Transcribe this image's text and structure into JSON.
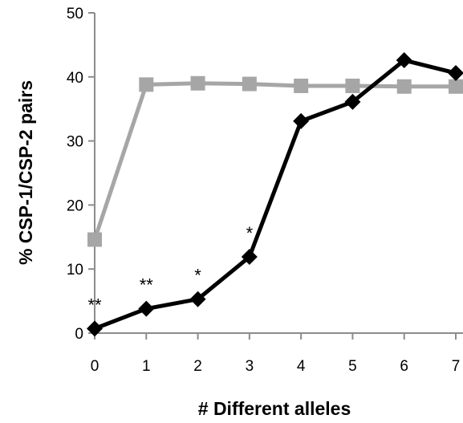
{
  "chart_data": {
    "type": "line",
    "title": "",
    "xlabel": "# Different alleles",
    "ylabel": "% CSP-1/CSP-2 pairs",
    "x": [
      0,
      1,
      2,
      3,
      4,
      5,
      6,
      7
    ],
    "xlim": [
      0,
      7
    ],
    "ylim": [
      0,
      50
    ],
    "yticks": [
      "0",
      "10",
      "20",
      "30",
      "40",
      "50"
    ],
    "xticks": [
      "0",
      "1",
      "2",
      "3",
      "4",
      "5",
      "6",
      "7"
    ],
    "grid": false,
    "legend": "none",
    "series": [
      {
        "color": "#a6a6a6",
        "marker": "square",
        "values": [
          14.6,
          38.8,
          39.0,
          38.9,
          38.6,
          38.6,
          38.5,
          38.5
        ]
      },
      {
        "color": "#000000",
        "marker": "diamond",
        "values": [
          0.7,
          3.8,
          5.3,
          11.9,
          33.1,
          36.1,
          42.6,
          40.6
        ]
      }
    ],
    "annotations": [
      {
        "x": 0,
        "y": 0.7,
        "text": "**"
      },
      {
        "x": 1,
        "y": 3.8,
        "text": "**"
      },
      {
        "x": 2,
        "y": 5.3,
        "text": "*"
      },
      {
        "x": 3,
        "y": 11.9,
        "text": "*"
      }
    ]
  }
}
